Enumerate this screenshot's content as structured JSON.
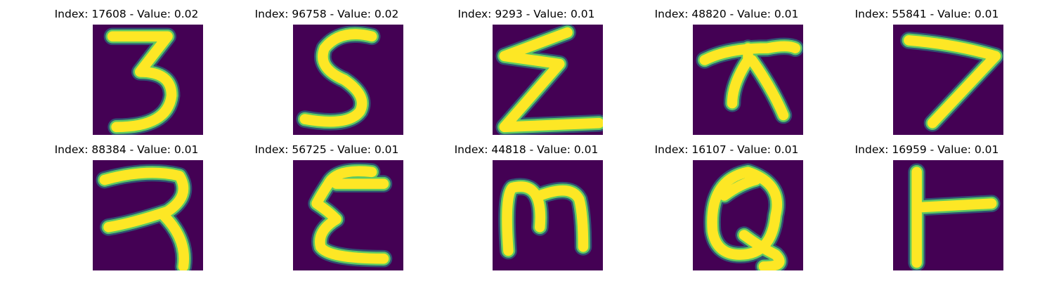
{
  "colors": {
    "background": "#440154",
    "stroke_outer": "#21918c",
    "stroke_mid": "#5ec962",
    "stroke_inner": "#fde725"
  },
  "cells": [
    {
      "title": "Index: 17608 - Value: 0.02",
      "glyph": "3"
    },
    {
      "title": "Index: 96758 - Value: 0.02",
      "glyph": "S"
    },
    {
      "title": "Index: 9293 - Value: 0.01",
      "glyph": "Z"
    },
    {
      "title": "Index: 48820 - Value: 0.01",
      "glyph": "pi"
    },
    {
      "title": "Index: 55841 - Value: 0.01",
      "glyph": "7"
    },
    {
      "title": "Index: 88384 - Value: 0.01",
      "glyph": "R"
    },
    {
      "title": "Index: 56725 - Value: 0.01",
      "glyph": "E"
    },
    {
      "title": "Index: 44818 - Value: 0.01",
      "glyph": "m"
    },
    {
      "title": "Index: 16107 - Value: 0.01",
      "glyph": "Q"
    },
    {
      "title": "Index: 16959 - Value: 0.01",
      "glyph": "T"
    }
  ]
}
